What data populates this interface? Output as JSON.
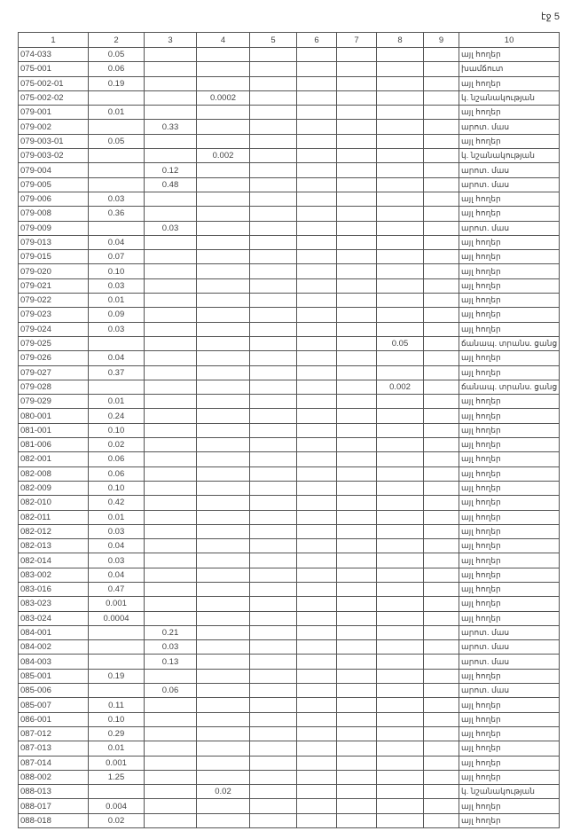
{
  "page_label": "էջ 5",
  "headers": [
    "1",
    "2",
    "3",
    "4",
    "5",
    "6",
    "7",
    "8",
    "9",
    "10"
  ],
  "rows": [
    [
      "074-033",
      "0.05",
      "",
      "",
      "",
      "",
      "",
      "",
      "",
      "այլ հողեր"
    ],
    [
      "075-001",
      "0.06",
      "",
      "",
      "",
      "",
      "",
      "",
      "",
      "խամճուտ"
    ],
    [
      "075-002-01",
      "0.19",
      "",
      "",
      "",
      "",
      "",
      "",
      "",
      "այլ հողեր"
    ],
    [
      "075-002-02",
      "",
      "",
      "0.0002",
      "",
      "",
      "",
      "",
      "",
      "կ. նշանակության"
    ],
    [
      "079-001",
      "0.01",
      "",
      "",
      "",
      "",
      "",
      "",
      "",
      "այլ հողեր"
    ],
    [
      "079-002",
      "",
      "0.33",
      "",
      "",
      "",
      "",
      "",
      "",
      "արոտ. մաս"
    ],
    [
      "079-003-01",
      "0.05",
      "",
      "",
      "",
      "",
      "",
      "",
      "",
      "այլ հողեր"
    ],
    [
      "079-003-02",
      "",
      "",
      "0.002",
      "",
      "",
      "",
      "",
      "",
      "կ. նշանակության"
    ],
    [
      "079-004",
      "",
      "0.12",
      "",
      "",
      "",
      "",
      "",
      "",
      "արոտ. մաս"
    ],
    [
      "079-005",
      "",
      "0.48",
      "",
      "",
      "",
      "",
      "",
      "",
      "արոտ. մաս"
    ],
    [
      "079-006",
      "0.03",
      "",
      "",
      "",
      "",
      "",
      "",
      "",
      "այլ հողեր"
    ],
    [
      "079-008",
      "0.36",
      "",
      "",
      "",
      "",
      "",
      "",
      "",
      "այլ հողեր"
    ],
    [
      "079-009",
      "",
      "0.03",
      "",
      "",
      "",
      "",
      "",
      "",
      "արոտ. մաս"
    ],
    [
      "079-013",
      "0.04",
      "",
      "",
      "",
      "",
      "",
      "",
      "",
      "այլ հողեր"
    ],
    [
      "079-015",
      "0.07",
      "",
      "",
      "",
      "",
      "",
      "",
      "",
      "այլ հողեր"
    ],
    [
      "079-020",
      "0.10",
      "",
      "",
      "",
      "",
      "",
      "",
      "",
      "այլ հողեր"
    ],
    [
      "079-021",
      "0.03",
      "",
      "",
      "",
      "",
      "",
      "",
      "",
      "այլ հողեր"
    ],
    [
      "079-022",
      "0.01",
      "",
      "",
      "",
      "",
      "",
      "",
      "",
      "այլ հողեր"
    ],
    [
      "079-023",
      "0.09",
      "",
      "",
      "",
      "",
      "",
      "",
      "",
      "այլ հողեր"
    ],
    [
      "079-024",
      "0.03",
      "",
      "",
      "",
      "",
      "",
      "",
      "",
      "այլ հողեր"
    ],
    [
      "079-025",
      "",
      "",
      "",
      "",
      "",
      "",
      "0.05",
      "",
      "ճանապ. տրանս. ցանց"
    ],
    [
      "079-026",
      "0.04",
      "",
      "",
      "",
      "",
      "",
      "",
      "",
      "այլ հողեր"
    ],
    [
      "079-027",
      "0.37",
      "",
      "",
      "",
      "",
      "",
      "",
      "",
      "այլ հողեր"
    ],
    [
      "079-028",
      "",
      "",
      "",
      "",
      "",
      "",
      "0.002",
      "",
      "ճանապ. տրանս. ցանց"
    ],
    [
      "079-029",
      "0.01",
      "",
      "",
      "",
      "",
      "",
      "",
      "",
      "այլ հողեր"
    ],
    [
      "080-001",
      "0.24",
      "",
      "",
      "",
      "",
      "",
      "",
      "",
      "այլ հողեր"
    ],
    [
      "081-001",
      "0.10",
      "",
      "",
      "",
      "",
      "",
      "",
      "",
      "այլ հողեր"
    ],
    [
      "081-006",
      "0.02",
      "",
      "",
      "",
      "",
      "",
      "",
      "",
      "այլ հողեր"
    ],
    [
      "082-001",
      "0.06",
      "",
      "",
      "",
      "",
      "",
      "",
      "",
      "այլ հողեր"
    ],
    [
      "082-008",
      "0.06",
      "",
      "",
      "",
      "",
      "",
      "",
      "",
      "այլ հողեր"
    ],
    [
      "082-009",
      "0.10",
      "",
      "",
      "",
      "",
      "",
      "",
      "",
      "այլ հողեր"
    ],
    [
      "082-010",
      "0.42",
      "",
      "",
      "",
      "",
      "",
      "",
      "",
      "այլ հողեր"
    ],
    [
      "082-011",
      "0.01",
      "",
      "",
      "",
      "",
      "",
      "",
      "",
      "այլ հողեր"
    ],
    [
      "082-012",
      "0.03",
      "",
      "",
      "",
      "",
      "",
      "",
      "",
      "այլ հողեր"
    ],
    [
      "082-013",
      "0.04",
      "",
      "",
      "",
      "",
      "",
      "",
      "",
      "այլ հողեր"
    ],
    [
      "082-014",
      "0.03",
      "",
      "",
      "",
      "",
      "",
      "",
      "",
      "այլ հողեր"
    ],
    [
      "083-002",
      "0.04",
      "",
      "",
      "",
      "",
      "",
      "",
      "",
      "այլ հողեր"
    ],
    [
      "083-016",
      "0.47",
      "",
      "",
      "",
      "",
      "",
      "",
      "",
      "այլ հողեր"
    ],
    [
      "083-023",
      "0.001",
      "",
      "",
      "",
      "",
      "",
      "",
      "",
      "այլ հողեր"
    ],
    [
      "083-024",
      "0.0004",
      "",
      "",
      "",
      "",
      "",
      "",
      "",
      "այլ հողեր"
    ],
    [
      "084-001",
      "",
      "0.21",
      "",
      "",
      "",
      "",
      "",
      "",
      "արոտ. մաս"
    ],
    [
      "084-002",
      "",
      "0.03",
      "",
      "",
      "",
      "",
      "",
      "",
      "արոտ. մաս"
    ],
    [
      "084-003",
      "",
      "0.13",
      "",
      "",
      "",
      "",
      "",
      "",
      "արոտ. մաս"
    ],
    [
      "085-001",
      "0.19",
      "",
      "",
      "",
      "",
      "",
      "",
      "",
      "այլ հողեր"
    ],
    [
      "085-006",
      "",
      "0.06",
      "",
      "",
      "",
      "",
      "",
      "",
      "արոտ. մաս"
    ],
    [
      "085-007",
      "0.11",
      "",
      "",
      "",
      "",
      "",
      "",
      "",
      "այլ հողեր"
    ],
    [
      "086-001",
      "0.10",
      "",
      "",
      "",
      "",
      "",
      "",
      "",
      "այլ հողեր"
    ],
    [
      "087-012",
      "0.29",
      "",
      "",
      "",
      "",
      "",
      "",
      "",
      "այլ հողեր"
    ],
    [
      "087-013",
      "0.01",
      "",
      "",
      "",
      "",
      "",
      "",
      "",
      "այլ հողեր"
    ],
    [
      "087-014",
      "0.001",
      "",
      "",
      "",
      "",
      "",
      "",
      "",
      "այլ հողեր"
    ],
    [
      "088-002",
      "1.25",
      "",
      "",
      "",
      "",
      "",
      "",
      "",
      "այլ հողեր"
    ],
    [
      "088-013",
      "",
      "",
      "0.02",
      "",
      "",
      "",
      "",
      "",
      "կ. նշանակության"
    ],
    [
      "088-017",
      "0.004",
      "",
      "",
      "",
      "",
      "",
      "",
      "",
      "այլ հողեր"
    ],
    [
      "088-018",
      "0.02",
      "",
      "",
      "",
      "",
      "",
      "",
      "",
      "այլ հողեր"
    ]
  ]
}
